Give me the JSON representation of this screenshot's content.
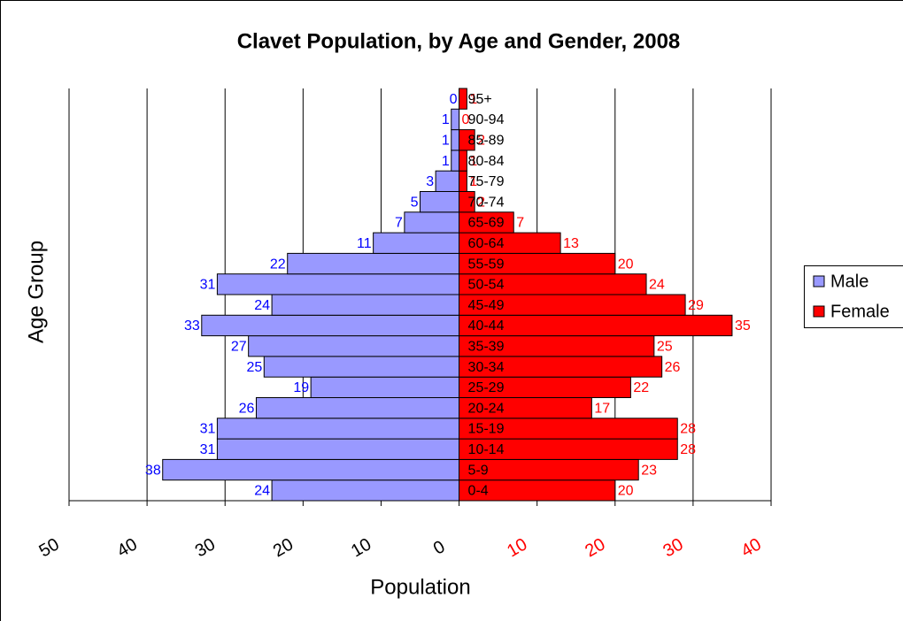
{
  "chart_data": {
    "type": "pyramid",
    "title": "Clavet Population, by Age and Gender, 2008",
    "x_label": "Population",
    "y_label": "Age Group",
    "categories": [
      "0-4",
      "5-9",
      "10-14",
      "15-19",
      "20-24",
      "25-29",
      "30-34",
      "35-39",
      "40-44",
      "45-49",
      "50-54",
      "55-59",
      "60-64",
      "65-69",
      "70-74",
      "75-79",
      "80-84",
      "85-89",
      "90-94",
      "95+"
    ],
    "series": [
      {
        "name": "Male",
        "color": "#9999ff",
        "label_color": "#0000ff",
        "values": [
          -24,
          -38,
          -31,
          -31,
          -26,
          -19,
          -25,
          -27,
          -33,
          -24,
          -31,
          -22,
          -11,
          -7,
          -5,
          -3,
          -1,
          -1,
          -1,
          0
        ],
        "value_labels": [
          "24",
          "38",
          "31",
          "31",
          "26",
          "19",
          "25",
          "27",
          "33",
          "24",
          "31",
          "22",
          "11",
          "7",
          "5",
          "3",
          "1",
          "1",
          "1",
          "0"
        ]
      },
      {
        "name": "Female",
        "color": "#ff0000",
        "label_color": "#ff0000",
        "values": [
          20,
          23,
          28,
          28,
          17,
          22,
          26,
          25,
          35,
          29,
          24,
          20,
          13,
          7,
          2,
          1,
          1,
          2,
          0,
          1
        ]
      }
    ],
    "xlim": [
      -50,
      40
    ],
    "xticks": [
      {
        "value": -50,
        "label": "50"
      },
      {
        "value": -40,
        "label": "40"
      },
      {
        "value": -30,
        "label": "30"
      },
      {
        "value": -20,
        "label": "20"
      },
      {
        "value": -10,
        "label": "10"
      },
      0,
      10,
      20,
      30,
      40
    ],
    "grid": true,
    "legend": "right"
  }
}
